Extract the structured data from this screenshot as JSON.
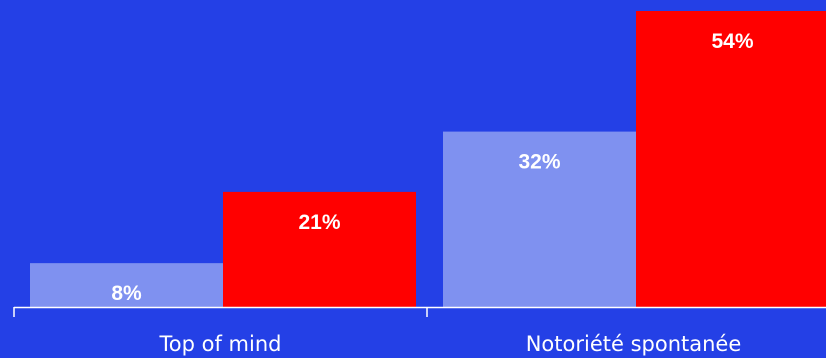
{
  "colors": {
    "background": "#2440E6",
    "series_a": "#7F91F0",
    "series_b": "#FF0000",
    "axis": "#FFFFFF",
    "text": "#FFFFFF"
  },
  "chart_data": {
    "type": "bar",
    "categories": [
      "Top of mind",
      "Notoriété spontanée"
    ],
    "series": [
      {
        "values": [
          8,
          32
        ],
        "labels": [
          "8%",
          "32%"
        ],
        "color": "#7F91F0"
      },
      {
        "values": [
          21,
          54
        ],
        "labels": [
          "21%",
          "54%"
        ],
        "color": "#FF0000"
      }
    ],
    "title": "",
    "xlabel": "",
    "ylabel": "",
    "ylim": [
      0,
      54
    ],
    "grid": false,
    "legend": "none"
  }
}
